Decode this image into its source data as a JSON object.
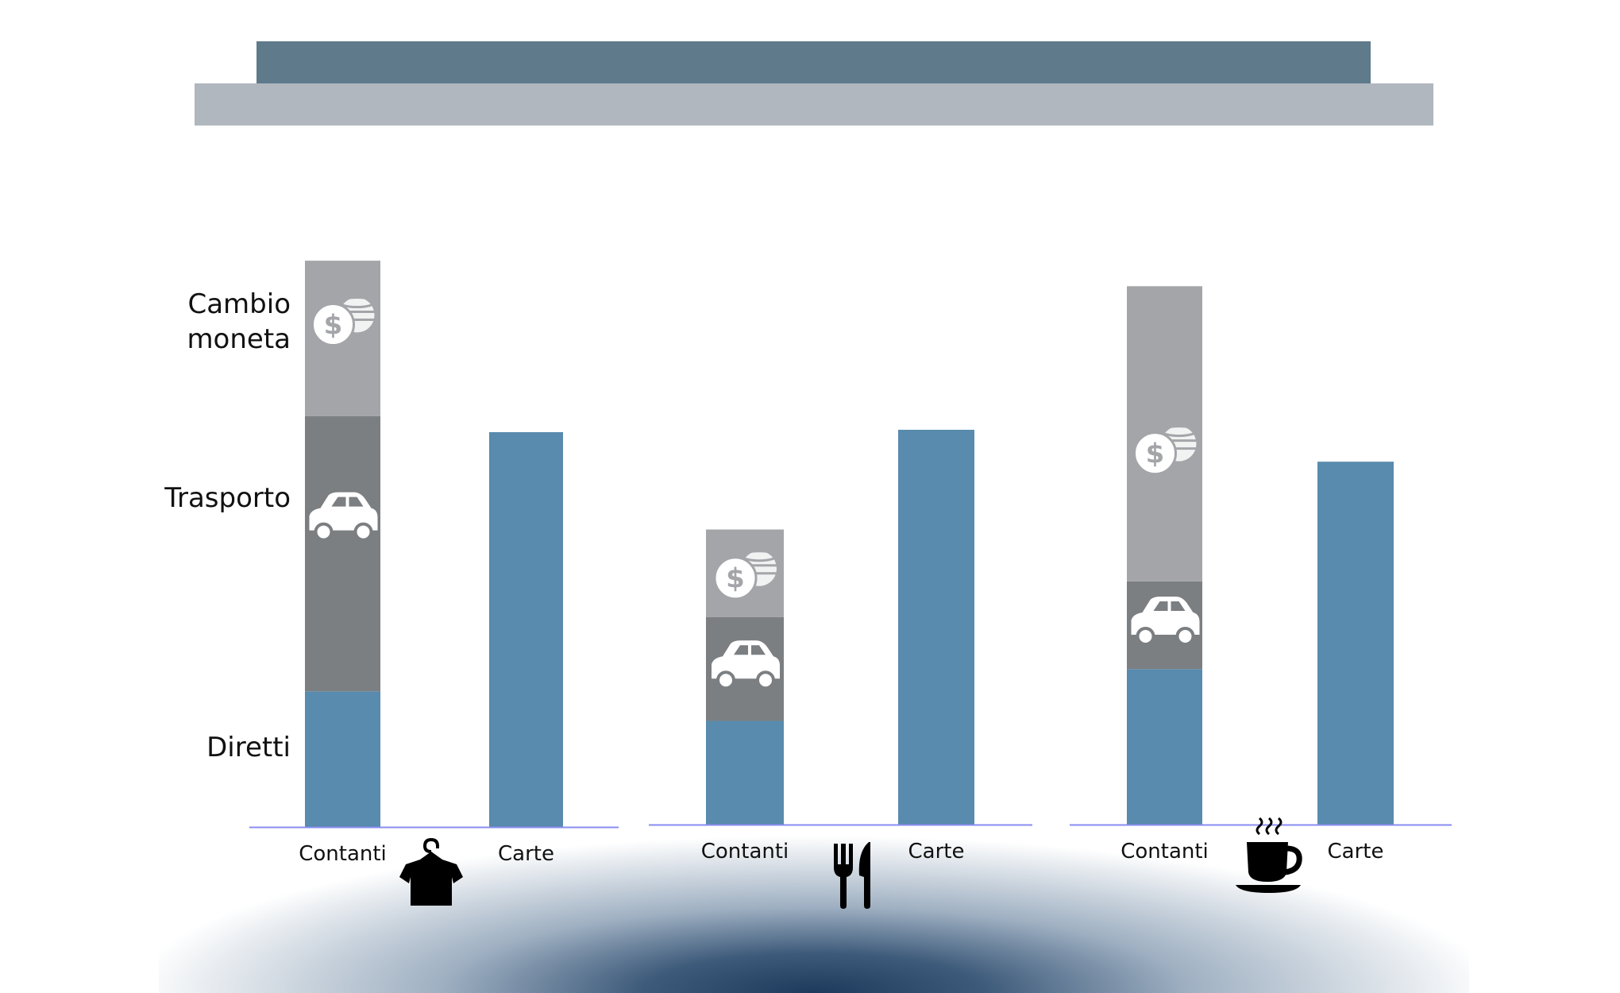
{
  "chart_data": {
    "type": "bar",
    "stacked": true,
    "title": "",
    "xlabel": "",
    "ylabel": "",
    "grid": false,
    "segment_labels": [
      "Diretti",
      "Trasporto",
      "Cambio moneta"
    ],
    "segment_label_lines": {
      "Diretti": [
        "Diretti"
      ],
      "Trasporto": [
        "Trasporto"
      ],
      "Cambio moneta": [
        "Cambio",
        "moneta"
      ]
    },
    "groups": [
      {
        "icon": "shirt-icon",
        "bars": [
          {
            "label": "Contanti",
            "Diretti": 34,
            "Trasporto": 69,
            "Cambio moneta": 39
          },
          {
            "label": "Carte",
            "Diretti": 99
          }
        ]
      },
      {
        "icon": "cutlery-icon",
        "bars": [
          {
            "label": "Contanti",
            "Diretti": 26,
            "Trasporto": 26,
            "Cambio moneta": 22
          },
          {
            "label": "Carte",
            "Diretti": 99
          }
        ]
      },
      {
        "icon": "coffee-cup-icon",
        "bars": [
          {
            "label": "Contanti",
            "Diretti": 39,
            "Trasporto": 22,
            "Cambio moneta": 74
          },
          {
            "label": "Carte",
            "Diretti": 91
          }
        ]
      }
    ],
    "segment_icons": {
      "Trasporto": "car-icon",
      "Cambio moneta": "coins-icon"
    },
    "colors": {
      "Diretti": "#588bad",
      "Trasporto": "#7b7f82",
      "Cambio moneta": "#a4a5a9",
      "axis": "#8a8cf0",
      "header_dark": "#5f7a8b",
      "header_light": "#b0b7be"
    }
  }
}
